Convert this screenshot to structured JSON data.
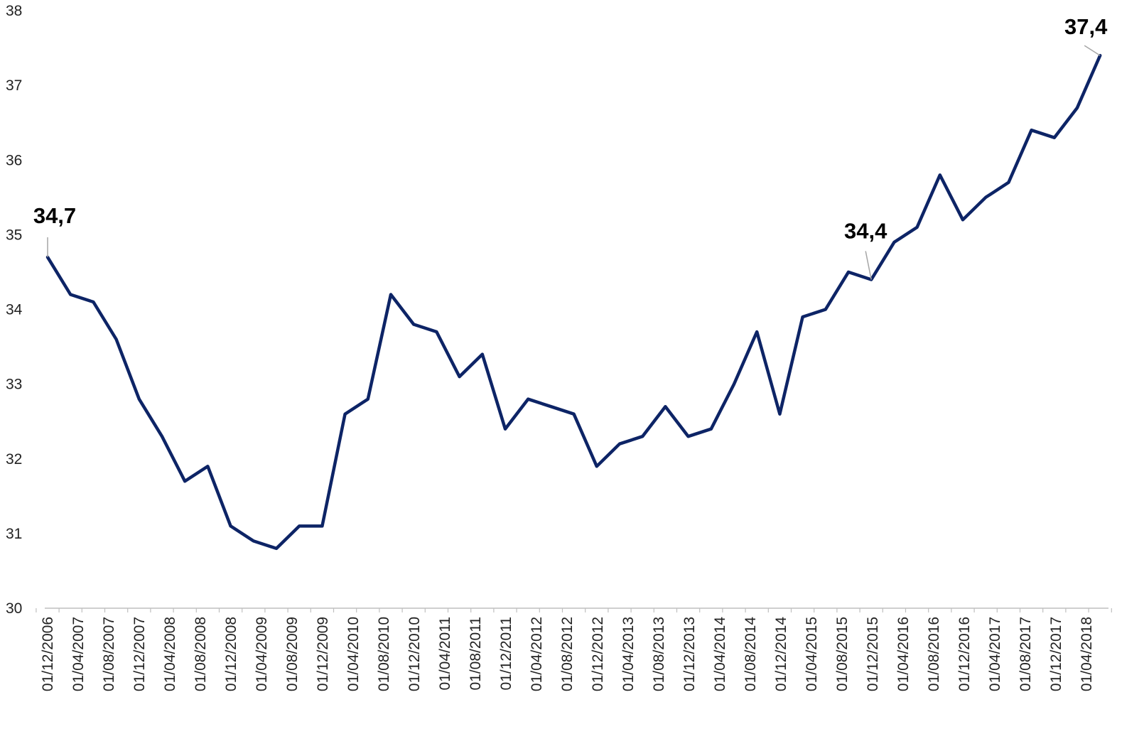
{
  "chart_data": {
    "type": "line",
    "title": "",
    "xlabel": "",
    "ylabel": "",
    "ylim": [
      30,
      38
    ],
    "yticks": [
      "30",
      "31",
      "32",
      "33",
      "34",
      "35",
      "36",
      "37",
      "38"
    ],
    "x_tick_labels": [
      "01/12/2006",
      "01/04/2007",
      "01/08/2007",
      "01/12/2007",
      "01/04/2008",
      "01/08/2008",
      "01/12/2008",
      "01/04/2009",
      "01/08/2009",
      "01/12/2009",
      "01/04/2010",
      "01/08/2010",
      "01/12/2010",
      "01/04/2011",
      "01/08/2011",
      "01/12/2011",
      "01/04/2012",
      "01/08/2012",
      "01/12/2012",
      "01/04/2013",
      "01/08/2013",
      "01/12/2013",
      "01/04/2014",
      "01/08/2014",
      "01/12/2014",
      "01/04/2015",
      "01/08/2015",
      "01/12/2015",
      "01/04/2016",
      "01/08/2016",
      "01/12/2016",
      "01/04/2017",
      "01/08/2017",
      "01/12/2017",
      "01/04/2018"
    ],
    "x": [
      "01/12/2006",
      "01/03/2007",
      "01/06/2007",
      "01/09/2007",
      "01/12/2007",
      "01/03/2008",
      "01/06/2008",
      "01/09/2008",
      "01/12/2008",
      "01/03/2009",
      "01/06/2009",
      "01/09/2009",
      "01/12/2009",
      "01/03/2010",
      "01/06/2010",
      "01/09/2010",
      "01/12/2010",
      "01/03/2011",
      "01/06/2011",
      "01/09/2011",
      "01/12/2011",
      "01/03/2012",
      "01/06/2012",
      "01/09/2012",
      "01/12/2012",
      "01/03/2013",
      "01/06/2013",
      "01/09/2013",
      "01/12/2013",
      "01/03/2014",
      "01/06/2014",
      "01/09/2014",
      "01/12/2014",
      "01/03/2015",
      "01/06/2015",
      "01/09/2015",
      "01/12/2015",
      "01/03/2016",
      "01/06/2016",
      "01/09/2016",
      "01/12/2016",
      "01/03/2017",
      "01/06/2017",
      "01/09/2017",
      "01/12/2017",
      "01/03/2018",
      "01/06/2018"
    ],
    "series": [
      {
        "values": [
          34.7,
          34.2,
          34.1,
          33.6,
          32.8,
          32.3,
          31.7,
          31.9,
          31.1,
          30.9,
          30.8,
          31.1,
          31.1,
          32.6,
          32.8,
          34.2,
          33.8,
          33.7,
          33.1,
          33.4,
          32.4,
          32.8,
          32.7,
          32.6,
          31.9,
          32.2,
          32.3,
          32.7,
          32.3,
          32.4,
          33.0,
          33.7,
          32.6,
          33.9,
          34.0,
          34.5,
          34.4,
          34.9,
          35.1,
          35.8,
          35.2,
          35.5,
          35.7,
          36.4,
          36.3,
          36.7,
          37.4
        ],
        "color": "#0d2466"
      }
    ],
    "data_labels": [
      {
        "text": "34,7",
        "point_index": 0
      },
      {
        "text": "34,4",
        "point_index": 36
      },
      {
        "text": "37,4",
        "point_index": 46
      }
    ],
    "colors": {
      "line": "#0d2466",
      "axis": "#bfbfbf",
      "leader": "#a6a6a6"
    },
    "grid": false,
    "legend": "none"
  }
}
